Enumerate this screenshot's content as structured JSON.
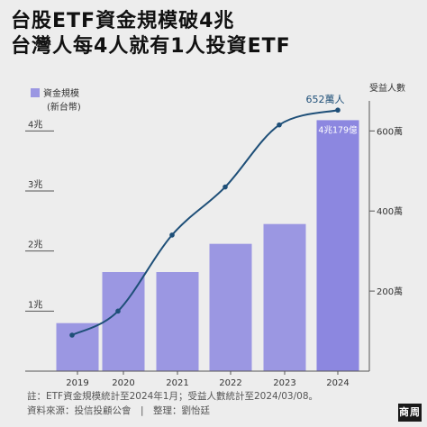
{
  "title": {
    "line1": "台股ETF資金規模破4兆",
    "line2": "台灣人每4人就有1人投資ETF"
  },
  "footer": {
    "note": "註：ETF資金規模統計至2024年1月；受益人數統計至2024/03/08。",
    "source": "資料來源：投信投顧公會　|　整理：劉怡廷"
  },
  "logo": {
    "text": "商周"
  },
  "colors": {
    "bar": "#9b97e2",
    "bar_highlight": "#8c87e0",
    "line": "#1e4f78",
    "annotation": "#1e4f78"
  },
  "chart_data": {
    "type": "bar",
    "categories": [
      "2019",
      "2020",
      "2021",
      "2022",
      "2023",
      "2024"
    ],
    "series": [
      {
        "name": "資金規模",
        "type": "bar",
        "axis": "left",
        "values": [
          0.8,
          1.65,
          1.65,
          2.12,
          2.45,
          4.179
        ]
      },
      {
        "name": "受益人數",
        "type": "line",
        "axis": "right",
        "values": [
          90,
          150,
          340,
          460,
          615,
          652
        ]
      }
    ],
    "left_axis": {
      "title": "(新台幣)",
      "ticks": [
        {
          "value": 1,
          "label": "1兆"
        },
        {
          "value": 2,
          "label": "2兆"
        },
        {
          "value": 3,
          "label": "3兆"
        },
        {
          "value": 4,
          "label": "4兆"
        }
      ],
      "ylim": [
        0,
        4.5
      ]
    },
    "right_axis": {
      "title": "受益人數",
      "ticks": [
        {
          "value": 200,
          "label": "200萬"
        },
        {
          "value": 400,
          "label": "400萬"
        },
        {
          "value": 600,
          "label": "600萬"
        }
      ],
      "ylim": [
        0,
        675
      ]
    },
    "legend": {
      "label": "資金規模",
      "placement": "top-left"
    },
    "annotations": {
      "bar_2024": "4兆179億",
      "line_2024": "652萬人"
    },
    "grid": false
  }
}
